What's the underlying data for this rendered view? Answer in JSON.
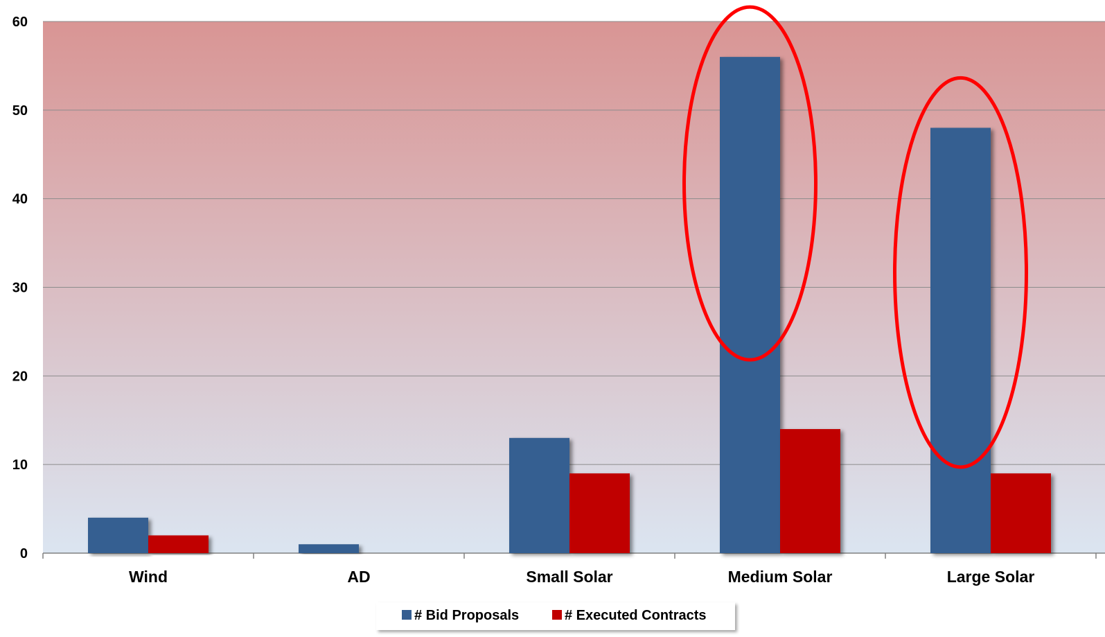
{
  "chart_data": {
    "type": "bar",
    "categories": [
      "Wind",
      "AD",
      "Small Solar",
      "Medium Solar",
      "Large Solar"
    ],
    "series": [
      {
        "name": "# Bid Proposals",
        "values": [
          4,
          1,
          13,
          56,
          48
        ],
        "color": "#355E91"
      },
      {
        "name": "# Executed Contracts",
        "values": [
          2,
          0,
          9,
          14,
          9
        ],
        "color": "#C00000"
      }
    ],
    "ylim": [
      0,
      60
    ],
    "yticks": [
      "0",
      "10",
      "20",
      "30",
      "40",
      "50",
      "60"
    ],
    "grid": true,
    "legend_position": "bottom",
    "highlighted_categories": [
      "Medium Solar",
      "Large Solar"
    ],
    "highlight_color": "#FF0000",
    "background_gradient": [
      "#D99594",
      "#DBE5F1"
    ]
  }
}
